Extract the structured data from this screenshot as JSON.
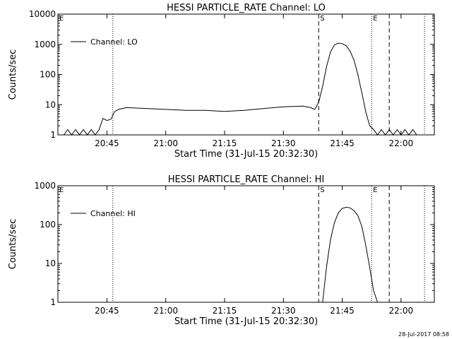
{
  "footer": {
    "timestamp": "28-Jul-2017 08:58"
  },
  "chart_data": [
    {
      "type": "line",
      "title": "HESSI PARTICLE_RATE Channel: LO",
      "xlabel": "Start Time (31-Jul-15 20:32:30)",
      "ylabel": "Counts/sec",
      "yscale": "log",
      "ylim": [
        1,
        10000
      ],
      "xlim": [
        "20:32:30",
        "22:08:30"
      ],
      "xticks": [
        "20:45",
        "21:00",
        "21:15",
        "21:30",
        "21:45",
        "22:00"
      ],
      "yticks": [
        "1",
        "10",
        "100",
        "1000",
        "10000"
      ],
      "legend": {
        "position": "top-left",
        "label": "Channel: LO"
      },
      "markers": [
        {
          "label": "E",
          "time": "20:32:30",
          "style": "dotted"
        },
        {
          "label": "",
          "time": "20:46:30",
          "style": "dotted"
        },
        {
          "label": "S",
          "time": "21:39:00",
          "style": "dashed"
        },
        {
          "label": "E",
          "time": "21:52:30",
          "style": "dotted"
        },
        {
          "label": "",
          "time": "21:57:00",
          "style": "dashed"
        },
        {
          "label": "",
          "time": "22:06:00",
          "style": "dotted"
        }
      ],
      "series": [
        {
          "x": [
            "20:34:00",
            "20:35:00",
            "20:36:00",
            "20:37:00",
            "20:38:00",
            "20:39:00",
            "20:40:00",
            "20:41:00",
            "20:42:00",
            "20:43:00",
            "20:44:00",
            "20:45:00",
            "20:46:00",
            "20:47:00",
            "20:48:00",
            "20:50:00",
            "20:55:00",
            "21:00:00",
            "21:05:00",
            "21:10:00",
            "21:15:00",
            "21:20:00",
            "21:25:00",
            "21:30:00",
            "21:35:00",
            "21:37:00",
            "21:38:00",
            "21:39:00",
            "21:40:00",
            "21:41:00",
            "21:42:00",
            "21:43:00",
            "21:44:00",
            "21:45:00",
            "21:46:00",
            "21:47:00",
            "21:48:00",
            "21:49:00",
            "21:50:00",
            "21:51:00",
            "21:52:00",
            "21:53:00",
            "21:54:00",
            "21:55:00",
            "21:56:00",
            "21:57:00",
            "21:58:00",
            "21:59:00",
            "22:00:00",
            "22:01:00",
            "22:02:00",
            "22:03:00",
            "22:04:00",
            "22:05:00"
          ],
          "y": [
            1,
            1.5,
            1,
            1.5,
            1,
            1.5,
            1,
            1.5,
            1,
            1.5,
            3.5,
            3,
            3.3,
            6,
            7,
            8,
            7.5,
            7,
            6.5,
            6.5,
            6,
            6.5,
            7.5,
            8.5,
            9,
            8,
            7,
            12,
            40,
            180,
            550,
            950,
            1100,
            1050,
            900,
            600,
            300,
            100,
            25,
            6,
            2,
            1.5,
            1,
            1.5,
            1,
            1.5,
            1,
            1.5,
            1,
            1.5,
            1,
            1.5,
            1,
            1
          ]
        }
      ]
    },
    {
      "type": "line",
      "title": "HESSI PARTICLE_RATE Channel: HI",
      "xlabel": "Start Time (31-Jul-15 20:32:30)",
      "ylabel": "Counts/sec",
      "yscale": "log",
      "ylim": [
        1,
        1000
      ],
      "xlim": [
        "20:32:30",
        "22:08:30"
      ],
      "xticks": [
        "20:45",
        "21:00",
        "21:15",
        "21:30",
        "21:45",
        "22:00"
      ],
      "yticks": [
        "1",
        "10",
        "100",
        "1000"
      ],
      "legend": {
        "position": "top-left",
        "label": "Channel: HI"
      },
      "markers": [
        {
          "label": "E",
          "time": "20:32:30",
          "style": "dotted"
        },
        {
          "label": "",
          "time": "20:46:30",
          "style": "dotted"
        },
        {
          "label": "S",
          "time": "21:39:00",
          "style": "dashed"
        },
        {
          "label": "E",
          "time": "21:52:30",
          "style": "dotted"
        },
        {
          "label": "",
          "time": "21:57:00",
          "style": "dashed"
        },
        {
          "label": "",
          "time": "22:06:00",
          "style": "dotted"
        }
      ],
      "series": [
        {
          "x": [
            "21:40:00",
            "21:41:00",
            "21:42:00",
            "21:43:00",
            "21:44:00",
            "21:45:00",
            "21:46:00",
            "21:47:00",
            "21:48:00",
            "21:49:00",
            "21:50:00",
            "21:51:00",
            "21:52:00",
            "21:53:00",
            "21:54:00"
          ],
          "y": [
            1,
            8,
            40,
            110,
            200,
            260,
            280,
            270,
            230,
            170,
            90,
            30,
            8,
            2,
            1
          ]
        }
      ]
    }
  ]
}
